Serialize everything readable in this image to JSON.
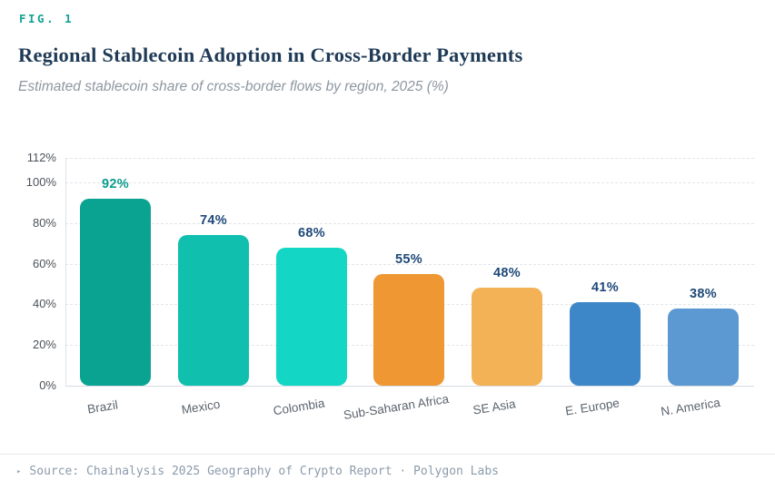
{
  "figure": {
    "label": "FIG. 1",
    "title": "Regional Stablecoin Adoption in Cross-Border Payments",
    "subtitle": "Estimated stablecoin share of cross-border flows by region, 2025 (%)"
  },
  "source": {
    "marker": "▸",
    "text": "Source: Chainalysis 2025 Geography of Crypto Report · Polygon Labs"
  },
  "colors": {
    "accent_teal": "#14A296",
    "title_navy": "#1E3A56",
    "value_navy": "#1E4878",
    "value_teal": "#0B9C8C",
    "grid": "#E2E6EA",
    "axis_line": "#DCE0E5",
    "tick_text": "#4C5259",
    "category_text": "#5C656F",
    "source_text": "#8C9BAB"
  },
  "chart_data": {
    "type": "bar",
    "title": "Regional Stablecoin Adoption in Cross-Border Payments",
    "subtitle": "Estimated stablecoin share of cross-border flows by region, 2025 (%)",
    "xlabel": "",
    "ylabel": "",
    "categories": [
      "Brazil",
      "Mexico",
      "Colombia",
      "Sub-Saharan Africa",
      "SE Asia",
      "E. Europe",
      "N. America"
    ],
    "values": [
      92,
      74,
      68,
      55,
      48,
      41,
      38
    ],
    "value_labels": [
      "92%",
      "74%",
      "68%",
      "55%",
      "48%",
      "41%",
      "38%"
    ],
    "bar_colors": [
      "#0AA392",
      "#10BFAE",
      "#14D6C4",
      "#EE9733",
      "#F4B257",
      "#3D87C8",
      "#5C99D2"
    ],
    "value_label_colors": [
      "#0B9C8C",
      "#1E4878",
      "#1E4878",
      "#1E4878",
      "#1E4878",
      "#1E4878",
      "#1E4878"
    ],
    "y_ticks": [
      0,
      20,
      40,
      60,
      80,
      100,
      112
    ],
    "y_tick_labels": [
      "0%",
      "20%",
      "40%",
      "60%",
      "80%",
      "100%",
      "112%"
    ],
    "ylim": [
      0,
      112
    ],
    "grid": "horizontal dashed",
    "legend": "none",
    "category_label_rotation_deg": -9
  }
}
